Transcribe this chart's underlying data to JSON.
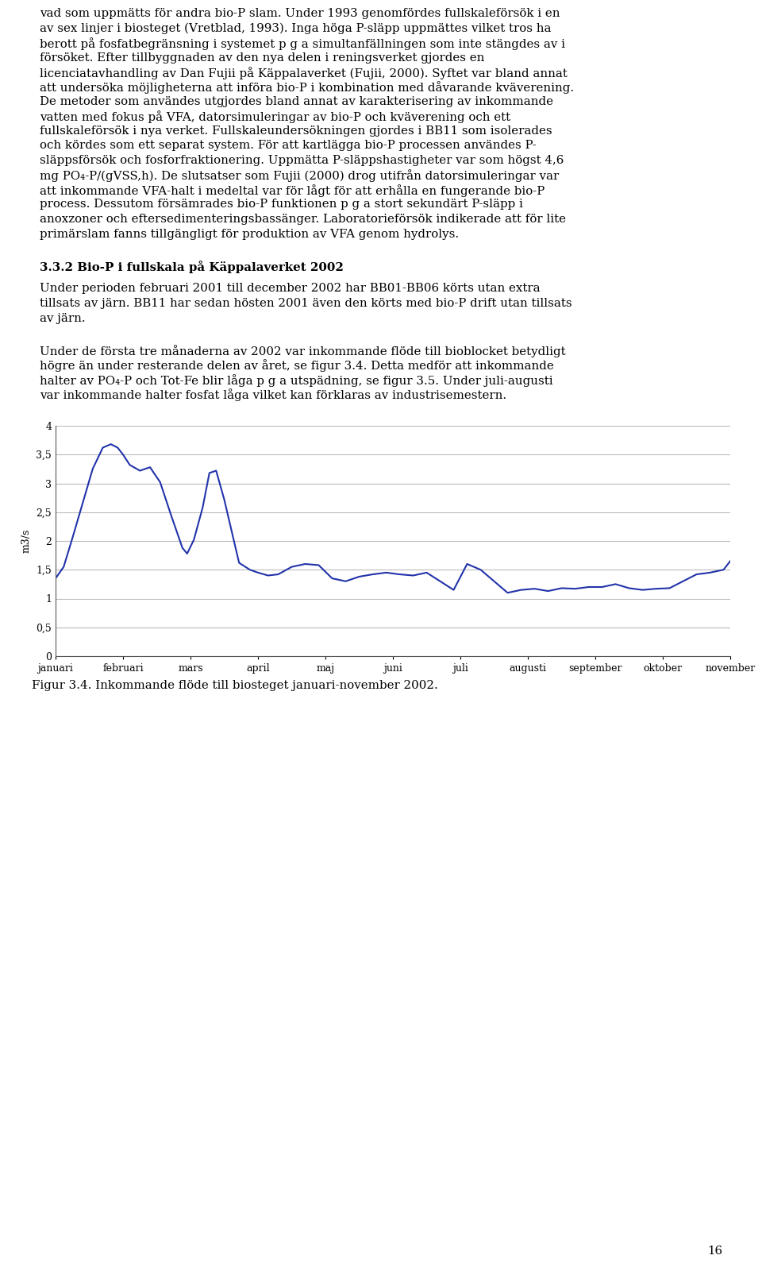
{
  "figure_caption": "Figur 3.4. Inkommande flöde till biosteget januari-november 2002.",
  "page_number": "16",
  "chart": {
    "ylabel": "m3/s",
    "yticks": [
      0,
      0.5,
      1,
      1.5,
      2,
      2.5,
      3,
      3.5,
      4
    ],
    "ytick_labels": [
      "0",
      "0,5",
      "1",
      "1,5",
      "2",
      "2,5",
      "3",
      "3,5",
      "4"
    ],
    "ylim": [
      0,
      4
    ],
    "xtick_labels": [
      "januari",
      "februari",
      "mars",
      "april",
      "maj",
      "juni",
      "juli",
      "augusti",
      "september",
      "oktober",
      "november"
    ],
    "line_color": "#2233aa",
    "line_width": 1.5,
    "grid_color": "#bbbbbb",
    "x_values": [
      0.0,
      0.12,
      0.25,
      0.4,
      0.55,
      0.7,
      0.82,
      0.92,
      1.0,
      1.1,
      1.25,
      1.4,
      1.55,
      1.72,
      1.88,
      1.95,
      2.05,
      2.18,
      2.28,
      2.38,
      2.5,
      2.62,
      2.72,
      2.88,
      3.0,
      3.15,
      3.3,
      3.5,
      3.7,
      3.9,
      4.1,
      4.3,
      4.5,
      4.7,
      4.9,
      5.1,
      5.3,
      5.5,
      5.7,
      5.9,
      6.1,
      6.3,
      6.5,
      6.7,
      6.9,
      7.1,
      7.3,
      7.5,
      7.7,
      7.9,
      8.1,
      8.3,
      8.5,
      8.7,
      8.9,
      9.1,
      9.3,
      9.5,
      9.7,
      9.9,
      10.0
    ],
    "y_values": [
      1.35,
      1.55,
      2.05,
      2.65,
      3.25,
      3.62,
      3.68,
      3.62,
      3.5,
      3.32,
      3.22,
      3.28,
      3.02,
      2.42,
      1.88,
      1.78,
      2.02,
      2.58,
      3.18,
      3.22,
      2.72,
      2.12,
      1.62,
      1.5,
      1.45,
      1.4,
      1.42,
      1.55,
      1.6,
      1.58,
      1.35,
      1.3,
      1.38,
      1.42,
      1.45,
      1.42,
      1.4,
      1.45,
      1.3,
      1.15,
      1.6,
      1.5,
      1.3,
      1.1,
      1.15,
      1.17,
      1.13,
      1.18,
      1.17,
      1.2,
      1.2,
      1.25,
      1.18,
      1.15,
      1.17,
      1.18,
      1.3,
      1.42,
      1.45,
      1.5,
      1.65
    ]
  },
  "para1_lines": [
    "vad som uppmätts för andra bio-P slam. Under 1993 genomfördes fullskaleförsök i en",
    "av sex linjer i biosteget (Vretblad, 1993). Inga höga P-släpp uppmättes vilket tros ha",
    "berott på fosfatbegränsning i systemet p g a simultanfällningen som inte stängdes av i",
    "försöket. Efter tillbyggnaden av den nya delen i reningsverket gjordes en",
    "licenciatavhandling av Dan Fujii på Käppalaverket (Fujii, 2000). Syftet var bland annat",
    "att undersöka möjligheterna att införa bio-P i kombination med dåvarande kväverening.",
    "De metoder som användes utgjordes bland annat av karakterisering av inkommande",
    "vatten med fokus på VFA, datorsimuleringar av bio-P och kväverening och ett",
    "fullskaleförsök i nya verket. Fullskaleundersökningen gjordes i BB11 som isolerades",
    "och kördes som ett separat system. För att kartlägga bio-P processen användes P-",
    "släppsförsök och fosforfraktionering. Uppmätta P-släppshastigheter var som högst 4,6",
    "mg PO₄-P/(gVSS,h). De slutsatser som Fujii (2000) drog utifrån datorsimuleringar var",
    "att inkommande VFA-halt i medeltal var för lågt för att erhålla en fungerande bio-P",
    "process. Dessutom försämrades bio-P funktionen p g a stort sekundärt P-släpp i",
    "anoxzoner och eftersedimenteringsbassänger. Laboratorieförsök indikerade att för lite",
    "primärslam fanns tillgängligt för produktion av VFA genom hydrolys."
  ],
  "section_heading": "3.3.2 Bio-P i fullskala på Käppalaverket 2002",
  "para2_lines": [
    "Under perioden februari 2001 till december 2002 har BB01-BB06 körts utan extra",
    "tillsats av järn. BB11 har sedan hösten 2001 även den körts med bio-P drift utan tillsats",
    "av järn."
  ],
  "para3_lines": [
    "Under de första tre månaderna av 2002 var inkommande flöde till bioblocket betydligt",
    "högre än under resterande delen av året, se figur 3.4. Detta medför att inkommande",
    "halter av PO₄-P och Tot-Fe blir låga p g a utspädning, se figur 3.5. Under juli-augusti",
    "var inkommande halter fosfat låga vilket kan förklaras av industrisemestern."
  ]
}
